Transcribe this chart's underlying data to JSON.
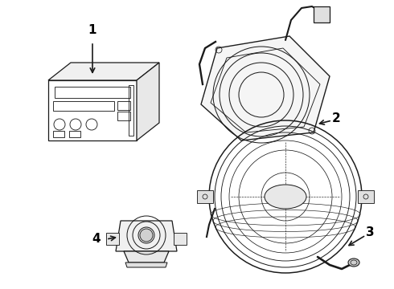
{
  "background_color": "#ffffff",
  "line_color": "#1a1a1a",
  "label_color": "#000000",
  "figsize": [
    4.9,
    3.6
  ],
  "dpi": 100,
  "lw": 0.9
}
